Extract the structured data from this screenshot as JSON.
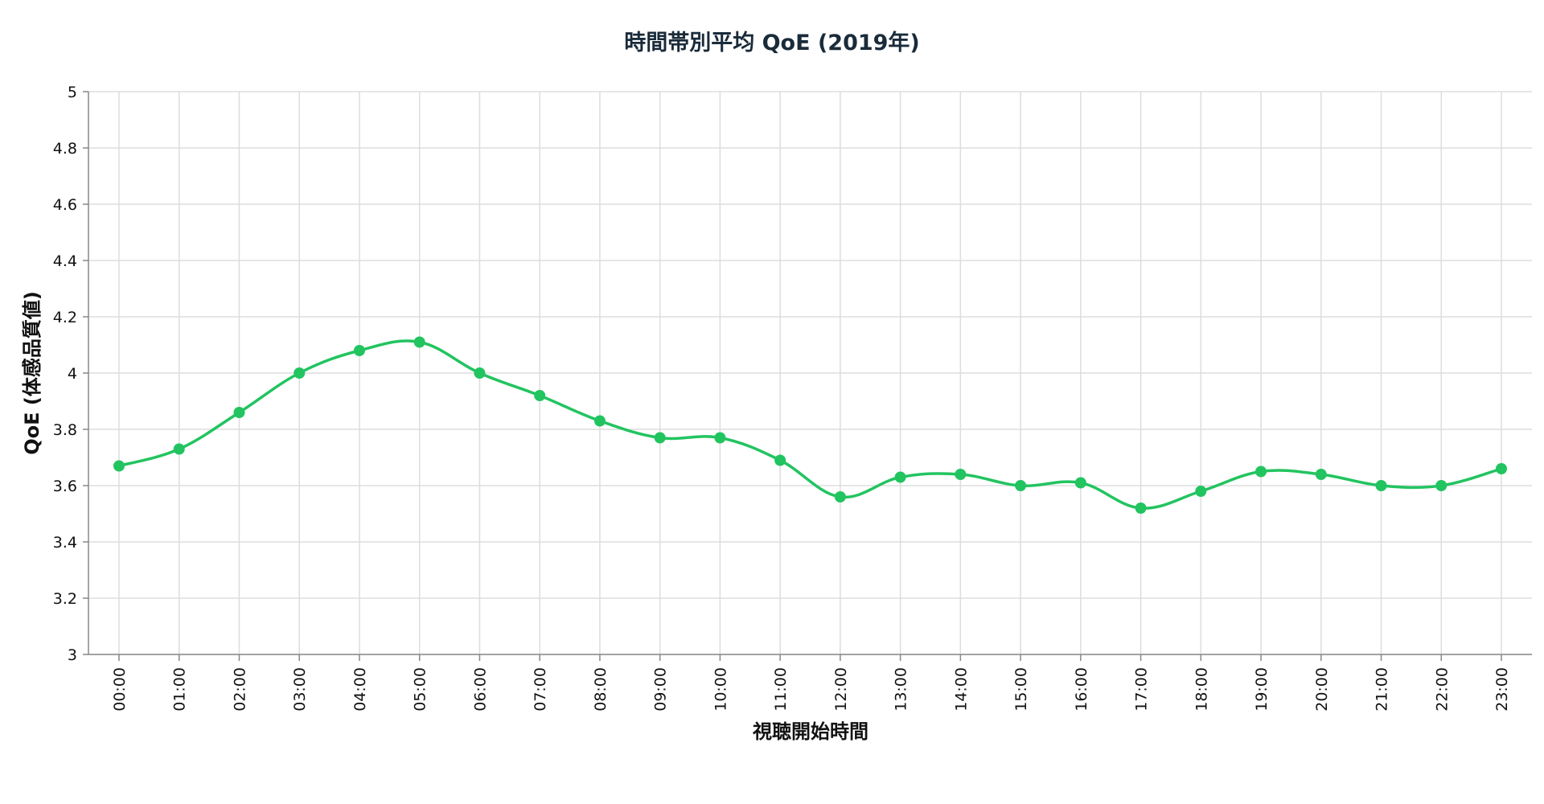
{
  "chart_data": {
    "type": "line",
    "title": "時間帯別平均 QoE (2019年)",
    "xlabel": "視聴開始時間",
    "ylabel": "QoE (体感品質値)",
    "categories": [
      "00:00",
      "01:00",
      "02:00",
      "03:00",
      "04:00",
      "05:00",
      "06:00",
      "07:00",
      "08:00",
      "09:00",
      "10:00",
      "11:00",
      "12:00",
      "13:00",
      "14:00",
      "15:00",
      "16:00",
      "17:00",
      "18:00",
      "19:00",
      "20:00",
      "21:00",
      "22:00",
      "23:00"
    ],
    "series": [
      {
        "values": [
          3.67,
          3.73,
          3.86,
          4.0,
          4.08,
          4.11,
          4.0,
          3.92,
          3.83,
          3.77,
          3.77,
          3.69,
          3.56,
          3.63,
          3.64,
          3.6,
          3.61,
          3.52,
          3.58,
          3.65,
          3.64,
          3.6,
          3.6,
          3.66
        ]
      }
    ],
    "ylim": [
      3,
      5
    ],
    "yticks": [
      "3",
      "3.2",
      "3.4",
      "3.6",
      "3.8",
      "4",
      "4.2",
      "4.4",
      "4.6",
      "4.8",
      "5"
    ],
    "grid": true,
    "line_color": "#22c460",
    "curve": "smooth"
  }
}
